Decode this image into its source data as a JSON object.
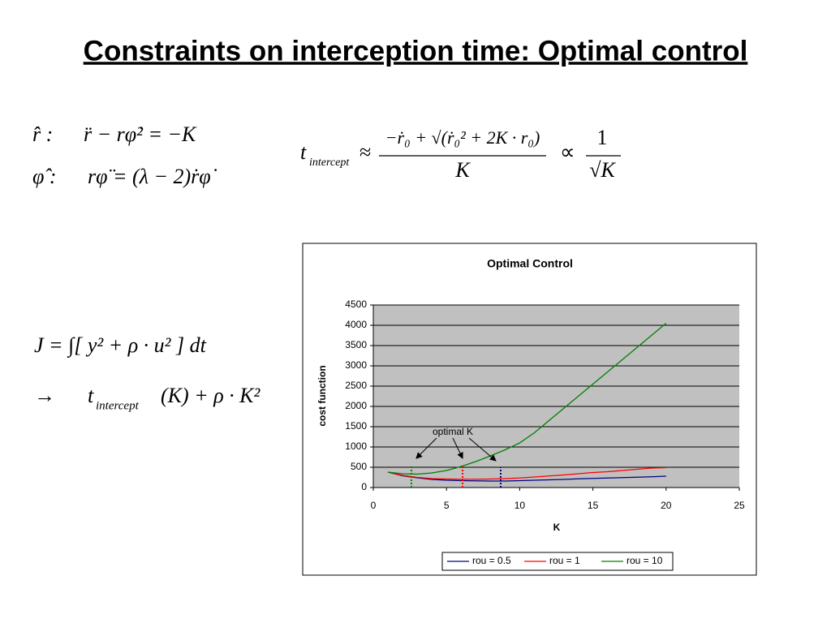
{
  "title": "Constraints on interception time: Optimal control",
  "equations": {
    "radial": {
      "label": "r̂ :",
      "expr": "r̈ − rφ̇² = −K"
    },
    "angular": {
      "label": "φ̂ :",
      "expr": "rφ̈ = (λ − 2)ṙφ̇"
    },
    "intercept": {
      "symbol": "t",
      "subscript": "intercept",
      "approx": "≈",
      "numerator": "−ṙ₀ + √(ṙ₀² + 2K · r₀)",
      "denominator": "K",
      "proportional": "∝",
      "prop_numerator": "1",
      "prop_denominator": "√K"
    },
    "cost": "J = ∫[ y² + ρ · u² ] dt",
    "result": {
      "arrow": "→",
      "symbol": "t",
      "subscript": "intercept",
      "expr": "(K) + ρ · K²"
    }
  },
  "chart_data": {
    "type": "line",
    "title": "Optimal Control",
    "x_label": "K",
    "y_label": "cost  function",
    "x": [
      1,
      2,
      3,
      4,
      5,
      6,
      7,
      8,
      9,
      10,
      11,
      12,
      13,
      14,
      15,
      16,
      17,
      18,
      19,
      20
    ],
    "series": [
      {
        "name": "rou = 0.5",
        "color": "#000080",
        "values": [
          380,
          290,
          240,
          200,
          180,
          170,
          165,
          160,
          160,
          170,
          180,
          190,
          200,
          215,
          225,
          235,
          245,
          255,
          265,
          280
        ]
      },
      {
        "name": "rou = 1",
        "color": "#ff0000",
        "values": [
          380,
          300,
          250,
          220,
          210,
          205,
          205,
          210,
          220,
          235,
          260,
          285,
          310,
          340,
          370,
          390,
          420,
          450,
          480,
          490
        ]
      },
      {
        "name": "rou = 10",
        "color": "#008000",
        "values": [
          380,
          340,
          330,
          360,
          420,
          520,
          640,
          780,
          930,
          1100,
          1350,
          1650,
          1950,
          2250,
          2550,
          2850,
          3150,
          3450,
          3750,
          4050
        ]
      }
    ],
    "annotation": {
      "text": "optimal K",
      "markers": [
        {
          "x": 2.6,
          "y": 560,
          "color": "#008000"
        },
        {
          "x": 6.1,
          "y": 560,
          "color": "#ff0000"
        },
        {
          "x": 8.7,
          "y": 500,
          "color": "#000080"
        }
      ]
    },
    "xlim": [
      0,
      25
    ],
    "xticks": [
      0,
      5,
      10,
      15,
      20,
      25
    ],
    "ylim": [
      0,
      4500
    ],
    "yticks": [
      0,
      500,
      1000,
      1500,
      2000,
      2500,
      3000,
      3500,
      4000,
      4500
    ],
    "grid": true,
    "legend": "bottom"
  }
}
